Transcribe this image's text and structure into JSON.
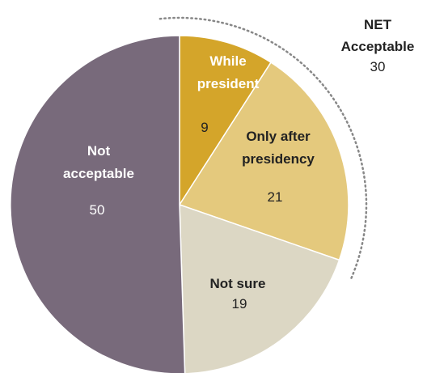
{
  "chart_data": {
    "type": "pie",
    "slices": [
      {
        "label": "While president",
        "value": 9,
        "color": "#d4a52a",
        "label_color": "#ffffff",
        "value_color": "#222222"
      },
      {
        "label": "Only after presidency",
        "value": 21,
        "color": "#e4c97d",
        "label_color": "#222222",
        "value_color": "#222222"
      },
      {
        "label": "Not sure",
        "value": 19,
        "color": "#dcd7c4",
        "label_color": "#222222",
        "value_color": "#222222"
      },
      {
        "label": "Not acceptable",
        "value": 50,
        "color": "#786a7b",
        "label_color": "#ffffff",
        "value_color": "#ffffff"
      }
    ],
    "net": {
      "title_line1": "NET",
      "title_line2": "Acceptable",
      "value": 30
    }
  }
}
